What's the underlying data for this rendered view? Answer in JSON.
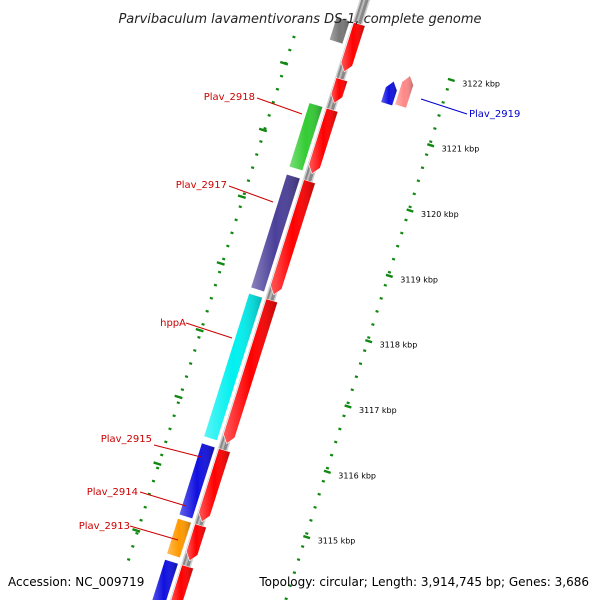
{
  "header": {
    "title": "Parvibaculum lavamentivorans DS-1, complete genome"
  },
  "footer": {
    "accession": "Accession: NC_009719",
    "summary": "Topology: circular; Length: 3,914,745 bp; Genes: 3,686"
  },
  "axis": {
    "unit": "kbp",
    "ticks": [
      {
        "kbp": 3122,
        "label": "3122 kbp"
      },
      {
        "kbp": 3121,
        "label": "3121 kbp"
      },
      {
        "kbp": 3120,
        "label": "3120 kbp"
      },
      {
        "kbp": 3119,
        "label": "3119 kbp"
      },
      {
        "kbp": 3118,
        "label": "3118 kbp"
      },
      {
        "kbp": 3117,
        "label": "3117 kbp"
      },
      {
        "kbp": 3116,
        "label": "3116 kbp"
      },
      {
        "kbp": 3115,
        "label": "3115 kbp"
      }
    ]
  },
  "colors": {
    "label_red": "#cc0000",
    "label_blue": "#0000cc",
    "cds_red": "#ff0000",
    "backbone": "#888888",
    "tick_green": "#118811"
  },
  "genes": [
    {
      "name": "Plav_2913",
      "color": "#1010e0",
      "label_color": "#cc0000",
      "labeled": true,
      "strand": "reverse"
    },
    {
      "name": "Plav_2914",
      "color": "#ff9900",
      "label_color": "#cc0000",
      "labeled": true,
      "strand": "reverse"
    },
    {
      "name": "Plav_2915",
      "color": "#1010e0",
      "label_color": "#cc0000",
      "labeled": true,
      "strand": "reverse"
    },
    {
      "name": "hppA",
      "color": "#00f0f0",
      "label_color": "#cc0000",
      "labeled": true,
      "strand": "reverse"
    },
    {
      "name": "Plav_2917",
      "color": "#4a3f99",
      "label_color": "#cc0000",
      "labeled": true,
      "strand": "reverse"
    },
    {
      "name": "Plav_2918",
      "color": "#33cc33",
      "label_color": "#cc0000",
      "labeled": true,
      "strand": "reverse"
    },
    {
      "name": "Plav_2919",
      "color": "#ff8888",
      "label_color": "#0000cc",
      "labeled": true,
      "strand": "forward"
    },
    {
      "name": "",
      "color": "#777777",
      "label_color": "#cc0000",
      "labeled": false,
      "strand": "reverse"
    }
  ]
}
